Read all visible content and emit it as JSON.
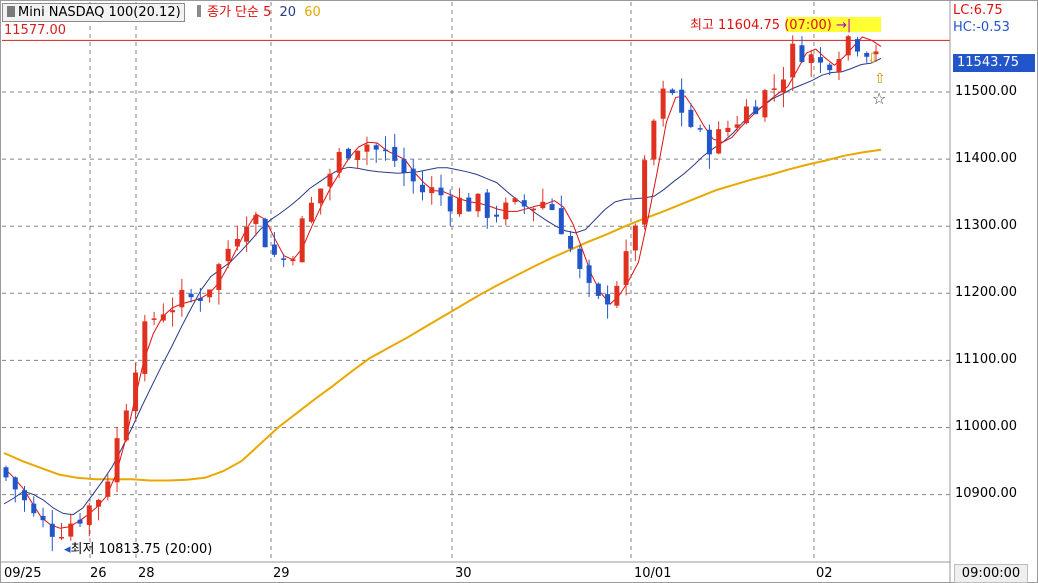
{
  "header": {
    "symbol_label": "Mini NASDAQ 100(20.12)",
    "legend_main": "종가 단순 5",
    "legend_p20": "20",
    "legend_p60": "60"
  },
  "colors": {
    "up_candle": "#e03020",
    "down_candle": "#2155c9",
    "ma5": "#e01010",
    "ma20": "#2a3a8a",
    "ma60": "#e8a800",
    "ref_line": "#d02020",
    "lc_text": "#e01010",
    "hc_text": "#2155c9",
    "grid": "#666666"
  },
  "annotations": {
    "lc": "LC:6.75",
    "hc": "HC:-0.53",
    "ref_price": "11577.00",
    "high": "최고 11604.75 (07:00)",
    "low": "최저 10813.75 (20:00)",
    "last_price": "11543.75",
    "current_time": "09:00:00"
  },
  "chart_data": {
    "type": "candlestick",
    "title": "Mini NASDAQ 100(20.12)",
    "y_ticks": [
      11500,
      11400,
      11300,
      11200,
      11100,
      11000,
      10900
    ],
    "y_tick_labels": [
      "11500.00",
      "11400.00",
      "11300.00",
      "11200.00",
      "11100.00",
      "11000.00",
      "10900.00"
    ],
    "ylim": [
      10800,
      11610
    ],
    "x_labels": [
      "09/25",
      "26",
      "28",
      "29",
      "30",
      "10/01",
      "02"
    ],
    "reference_line": 11577.0,
    "high": {
      "value": 11604.75,
      "time": "07:00"
    },
    "low": {
      "value": 10813.75,
      "time": "20:00"
    },
    "last": 11543.75,
    "grid": true,
    "series": [
      {
        "name": "5",
        "type": "line",
        "values": [
          10940,
          10926,
          10910,
          10888,
          10866,
          10855,
          10850,
          10852,
          10860,
          10870,
          10882,
          10898,
          10930,
          10980,
          11040,
          11100,
          11140,
          11165,
          11178,
          11184,
          11188,
          11192,
          11200,
          11215,
          11240,
          11268,
          11296,
          11318,
          11310,
          11282,
          11256,
          11250,
          11268,
          11300,
          11330,
          11357,
          11380,
          11402,
          11418,
          11425,
          11424,
          11413,
          11406,
          11399,
          11380,
          11365,
          11353,
          11352,
          11346,
          11340,
          11336,
          11334,
          11330,
          11325,
          11322,
          11322,
          11326,
          11330,
          11333,
          11338,
          11328,
          11303,
          11265,
          11227,
          11200,
          11184,
          11198,
          11220,
          11246,
          11310,
          11380,
          11455,
          11492,
          11494,
          11474,
          11450,
          11430,
          11425,
          11432,
          11448,
          11462,
          11475,
          11487,
          11498,
          11508,
          11532,
          11558,
          11564,
          11551,
          11540,
          11552,
          11567,
          11582,
          11577,
          11568
        ]
      },
      {
        "name": "20",
        "type": "line",
        "values": [
          10886,
          10895,
          10905,
          10900,
          10892,
          10880,
          10872,
          10870,
          10880,
          10900,
          10920,
          10942,
          10970,
          11000,
          11032,
          11062,
          11092,
          11120,
          11150,
          11178,
          11205,
          11225,
          11236,
          11247,
          11262,
          11278,
          11295,
          11309,
          11319,
          11330,
          11342,
          11356,
          11366,
          11376,
          11384,
          11388,
          11386,
          11383,
          11381,
          11380,
          11379,
          11380,
          11381,
          11384,
          11387,
          11387,
          11384,
          11381,
          11377,
          11371,
          11365,
          11352,
          11340,
          11330,
          11319,
          11309,
          11300,
          11293,
          11290,
          11295,
          11310,
          11325,
          11336,
          11340,
          11341,
          11342,
          11345,
          11355,
          11367,
          11378,
          11391,
          11405,
          11416,
          11426,
          11439,
          11455,
          11469,
          11479,
          11490,
          11497,
          11505,
          11511,
          11517,
          11525,
          11529,
          11530,
          11535,
          11541,
          11543,
          11550
        ]
      },
      {
        "name": "60",
        "type": "line",
        "values": [
          10962,
          10950,
          10940,
          10930,
          10925,
          10923,
          10923,
          10923,
          10921,
          10921,
          10922,
          10925,
          10935,
          10950,
          10975,
          11000,
          11021,
          11042,
          11062,
          11083,
          11103,
          11118,
          11133,
          11149,
          11165,
          11181,
          11197,
          11212,
          11226,
          11240,
          11253,
          11265,
          11277,
          11288,
          11300,
          11311,
          11321,
          11332,
          11343,
          11354,
          11362,
          11370,
          11377,
          11385,
          11392,
          11398,
          11405,
          11410,
          11414
        ]
      }
    ]
  }
}
